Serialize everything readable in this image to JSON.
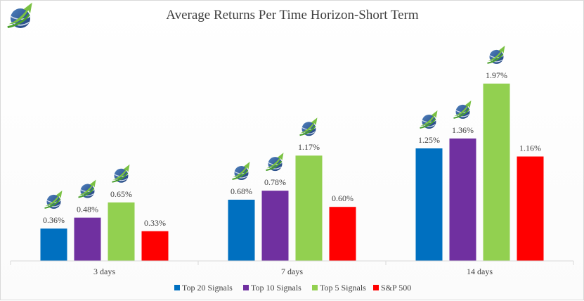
{
  "chart_data": {
    "type": "bar",
    "title": "Average Returns Per Time Horizon-Short Term",
    "categories": [
      "3 days",
      "7 days",
      "14 days"
    ],
    "series": [
      {
        "name": "Top 20 Signals",
        "color": "#0070c0",
        "values": [
          0.36,
          0.68,
          1.25
        ],
        "labels": [
          "0.36%",
          "0.68%",
          "1.25%"
        ]
      },
      {
        "name": "Top 10 Signals",
        "color": "#7030a0",
        "values": [
          0.48,
          0.78,
          1.36
        ],
        "labels": [
          "0.48%",
          "0.78%",
          "1.36%"
        ]
      },
      {
        "name": "Top 5 Signals",
        "color": "#92d050",
        "values": [
          0.65,
          1.17,
          1.97
        ],
        "labels": [
          "0.65%",
          "1.17%",
          "1.97%"
        ]
      },
      {
        "name": "S&P 500",
        "color": "#ff0000",
        "values": [
          0.33,
          0.6,
          1.16
        ],
        "labels": [
          "0.33%",
          "0.60%",
          "1.16%"
        ]
      }
    ],
    "ylim": [
      0,
      2.2
    ],
    "grid": false,
    "legend_position": "bottom",
    "logo_icon": "rising-arrow-globe-logo",
    "logo_on_series": [
      "Top 20 Signals",
      "Top 10 Signals",
      "Top 5 Signals"
    ]
  }
}
